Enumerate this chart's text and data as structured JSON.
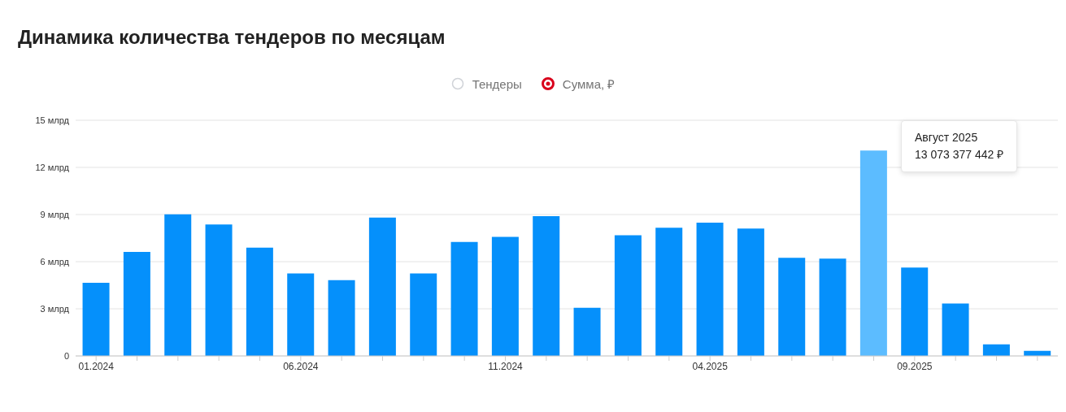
{
  "chart_data": {
    "type": "bar",
    "title": "Динамика количества тендеров по месяцам",
    "categories": [
      "01.2024",
      null,
      null,
      null,
      null,
      "06.2024",
      null,
      null,
      null,
      null,
      "11.2024",
      null,
      null,
      null,
      null,
      "04.2025",
      null,
      null,
      null,
      null,
      "09.2025",
      null,
      null,
      null
    ],
    "series": [
      {
        "name": "Тендеры",
        "color": "#d0d3d8",
        "values": [
          null,
          null,
          null,
          null,
          null,
          null,
          null,
          null,
          null,
          null,
          null,
          null,
          null,
          null,
          null,
          null,
          null,
          null,
          null,
          null,
          null,
          null,
          null,
          null
        ]
      },
      {
        "name": "Сумма, ₽",
        "color": "#0590fb",
        "colors": [
          "#0590fb",
          "#0590fb",
          "#0590fb",
          "#0590fb",
          "#0590fb",
          "#0590fb",
          "#0590fb",
          "#0590fb",
          "#0590fb",
          "#0590fb",
          "#0590fb",
          "#0590fb",
          "#0590fb",
          "#0590fb",
          "#0590fb",
          "#0590fb",
          "#0590fb",
          "#0590fb",
          "#0590fb",
          "#5cbcff",
          "#0590fb",
          "#0590fb",
          "#0590fb",
          "#0590fb"
        ],
        "values": [
          4.66,
          6.62,
          9.01,
          8.37,
          6.89,
          5.25,
          4.82,
          8.8,
          5.25,
          7.26,
          7.58,
          8.9,
          3.07,
          7.68,
          8.16,
          8.48,
          8.11,
          6.25,
          6.2,
          13.07,
          5.62,
          3.34,
          0.74,
          0.32
        ]
      }
    ],
    "ylim": [
      0,
      15
    ],
    "yticks": [
      0,
      {
        "value": 3,
        "label": "3 млрд"
      },
      {
        "value": 6,
        "label": "6 млрд"
      },
      {
        "value": 9,
        "label": "9 млрд"
      },
      {
        "value": 12,
        "label": "12 млрд"
      },
      {
        "value": 15,
        "label": "15 млрд"
      }
    ],
    "grid": "y",
    "legend": "top",
    "annotations": [
      "Август 2025",
      "13 073 377 442 ₽"
    ]
  }
}
